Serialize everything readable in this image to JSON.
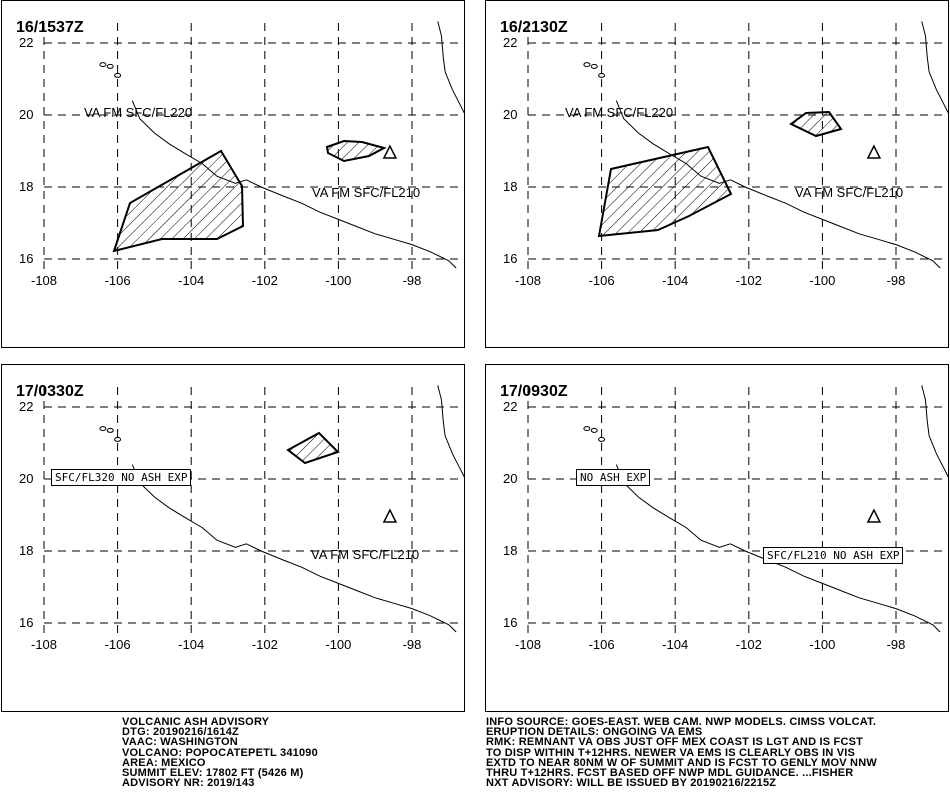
{
  "map": {
    "y_ticks": [
      22,
      20,
      18,
      16
    ],
    "x_ticks": [
      -108,
      -106,
      -104,
      -102,
      -100,
      -98
    ]
  },
  "panels": [
    {
      "time": "16/1537Z",
      "labels": [
        "VA FM SFC/FL220",
        "VA FM SFC/FL210"
      ],
      "boxes": []
    },
    {
      "time": "16/2130Z",
      "labels": [
        "VA FM SFC/FL220",
        "VA FM SFC/FL210"
      ],
      "boxes": []
    },
    {
      "time": "17/0330Z",
      "labels": [
        "VA FM SFC/FL210"
      ],
      "boxes": [
        "SFC/FL320 NO ASH EXP"
      ]
    },
    {
      "time": "17/0930Z",
      "labels": [],
      "boxes": [
        "NO ASH EXP",
        "SFC/FL210 NO ASH EXP"
      ]
    }
  ],
  "advisory_left": [
    "VOLCANIC ASH ADVISORY",
    "DTG: 20190216/1614Z",
    "VAAC: WASHINGTON",
    "VOLCANO: POPOCATEPETL 341090",
    "AREA: MEXICO",
    "SUMMIT ELEV: 17802 FT (5426 M)",
    "ADVISORY NR: 2019/143"
  ],
  "advisory_right": [
    "INFO SOURCE: GOES-EAST. WEB CAM. NWP MODELS. CIMSS VOLCAT.",
    "ERUPTION DETAILS: ONGOING VA EMS",
    "RMK: REMNANT VA OBS JUST OFF MEX COAST IS LGT AND IS FCST",
    "TO DISP WITHIN T+12HRS. NEWER VA EMS IS CLEARLY OBS IN VIS",
    "EXTD TO NEAR 80NM W OF SUMMIT AND IS FCST TO GENLY MOV NNW",
    "THRU T+12HRS. FCST BASED OFF NWP MDL GUIDANCE. ...FISHER",
    "NXT ADVISORY: WILL BE ISSUED BY 20190216/2215Z"
  ],
  "colors": {
    "ink": "#000000",
    "background": "#ffffff"
  }
}
